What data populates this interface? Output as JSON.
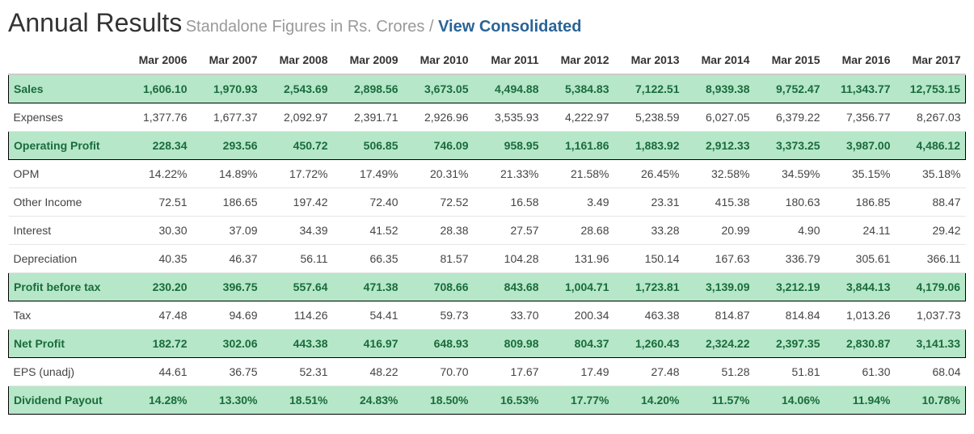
{
  "header": {
    "title": "Annual Results",
    "subtitle": "Standalone Figures in Rs. Crores / ",
    "link": "View Consolidated"
  },
  "table": {
    "columns": [
      "Mar 2006",
      "Mar 2007",
      "Mar 2008",
      "Mar 2009",
      "Mar 2010",
      "Mar 2011",
      "Mar 2012",
      "Mar 2013",
      "Mar 2014",
      "Mar 2015",
      "Mar 2016",
      "Mar 2017"
    ],
    "rows": [
      {
        "label": "Sales",
        "highlight": true,
        "values": [
          "1,606.10",
          "1,970.93",
          "2,543.69",
          "2,898.56",
          "3,673.05",
          "4,494.88",
          "5,384.83",
          "7,122.51",
          "8,939.38",
          "9,752.47",
          "11,343.77",
          "12,753.15"
        ]
      },
      {
        "label": "Expenses",
        "highlight": false,
        "values": [
          "1,377.76",
          "1,677.37",
          "2,092.97",
          "2,391.71",
          "2,926.96",
          "3,535.93",
          "4,222.97",
          "5,238.59",
          "6,027.05",
          "6,379.22",
          "7,356.77",
          "8,267.03"
        ]
      },
      {
        "label": "Operating Profit",
        "highlight": true,
        "values": [
          "228.34",
          "293.56",
          "450.72",
          "506.85",
          "746.09",
          "958.95",
          "1,161.86",
          "1,883.92",
          "2,912.33",
          "3,373.25",
          "3,987.00",
          "4,486.12"
        ]
      },
      {
        "label": "OPM",
        "highlight": false,
        "values": [
          "14.22%",
          "14.89%",
          "17.72%",
          "17.49%",
          "20.31%",
          "21.33%",
          "21.58%",
          "26.45%",
          "32.58%",
          "34.59%",
          "35.15%",
          "35.18%"
        ]
      },
      {
        "label": "Other Income",
        "highlight": false,
        "values": [
          "72.51",
          "186.65",
          "197.42",
          "72.40",
          "72.52",
          "16.58",
          "3.49",
          "23.31",
          "415.38",
          "180.63",
          "186.85",
          "88.47"
        ]
      },
      {
        "label": "Interest",
        "highlight": false,
        "values": [
          "30.30",
          "37.09",
          "34.39",
          "41.52",
          "28.38",
          "27.57",
          "28.68",
          "33.28",
          "20.99",
          "4.90",
          "24.11",
          "29.42"
        ]
      },
      {
        "label": "Depreciation",
        "highlight": false,
        "values": [
          "40.35",
          "46.37",
          "56.11",
          "66.35",
          "81.57",
          "104.28",
          "131.96",
          "150.14",
          "167.63",
          "336.79",
          "305.61",
          "366.11"
        ]
      },
      {
        "label": "Profit before tax",
        "highlight": true,
        "values": [
          "230.20",
          "396.75",
          "557.64",
          "471.38",
          "708.66",
          "843.68",
          "1,004.71",
          "1,723.81",
          "3,139.09",
          "3,212.19",
          "3,844.13",
          "4,179.06"
        ]
      },
      {
        "label": "Tax",
        "highlight": false,
        "values": [
          "47.48",
          "94.69",
          "114.26",
          "54.41",
          "59.73",
          "33.70",
          "200.34",
          "463.38",
          "814.87",
          "814.84",
          "1,013.26",
          "1,037.73"
        ]
      },
      {
        "label": "Net Profit",
        "highlight": true,
        "values": [
          "182.72",
          "302.06",
          "443.38",
          "416.97",
          "648.93",
          "809.98",
          "804.37",
          "1,260.43",
          "2,324.22",
          "2,397.35",
          "2,830.87",
          "3,141.33"
        ]
      },
      {
        "label": "EPS (unadj)",
        "highlight": false,
        "values": [
          "44.61",
          "36.75",
          "52.31",
          "48.22",
          "70.70",
          "17.67",
          "17.49",
          "27.48",
          "51.28",
          "51.81",
          "61.30",
          "68.04"
        ]
      },
      {
        "label": "Dividend Payout",
        "highlight": true,
        "values": [
          "14.28%",
          "13.30%",
          "18.51%",
          "24.83%",
          "18.50%",
          "16.53%",
          "17.77%",
          "14.20%",
          "11.57%",
          "14.06%",
          "11.94%",
          "10.78%"
        ]
      }
    ]
  },
  "style": {
    "highlight_bg": "#b6e7c9",
    "highlight_text": "#1a6b3b",
    "link_color": "#2a6496",
    "subtitle_color": "#999999",
    "border_color": "#000000",
    "row_border": "#e6e6e6"
  }
}
